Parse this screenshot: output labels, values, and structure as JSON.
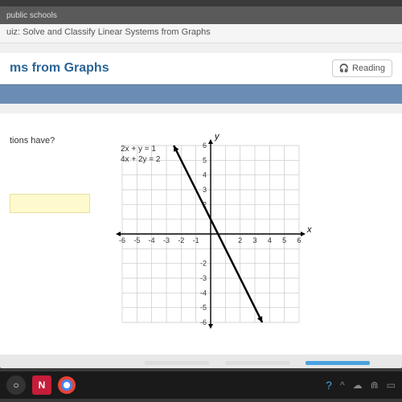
{
  "browser": {
    "tab_preview": "public schools"
  },
  "quiz": {
    "header": "uiz: Solve and Classify Linear Systems from Graphs",
    "page_title": "ms from Graphs",
    "reading_label": "Reading",
    "question_fragment": "tions have?"
  },
  "equations": {
    "eq1": "2x + y = 1",
    "eq2": "4x + 2y = 2"
  },
  "graph": {
    "type": "line",
    "xlim": [
      -6,
      6
    ],
    "ylim": [
      -6,
      6
    ],
    "tick_step": 1,
    "x_ticks_labeled": [
      -6,
      -5,
      -4,
      -3,
      -2,
      -1,
      2,
      3,
      4,
      5,
      6
    ],
    "y_ticks_labeled": [
      2,
      3,
      4,
      5,
      6,
      -2,
      -3,
      -4,
      -5,
      -6
    ],
    "xlabel": "x",
    "ylabel": "y",
    "grid_color": "#c8c8c8",
    "axis_color": "#000000",
    "line_color": "#000000",
    "line_width": 2.5,
    "background_color": "#ffffff",
    "tick_fontsize": 9,
    "line": {
      "slope": -2,
      "intercept": 1,
      "x_start": -2.5,
      "y_start": 6,
      "x_end": 3.5,
      "y_end": -6,
      "arrows": true
    }
  },
  "progress": {
    "bar1_color": "#dddddd",
    "bar2_color": "#dddddd",
    "bar3_color": "#4aa3df"
  },
  "taskbar": {
    "netflix_label": "N",
    "tray": {
      "help": "?",
      "caret": "^",
      "wifi": "⋒",
      "cloud": "☁",
      "battery": "▭"
    }
  }
}
